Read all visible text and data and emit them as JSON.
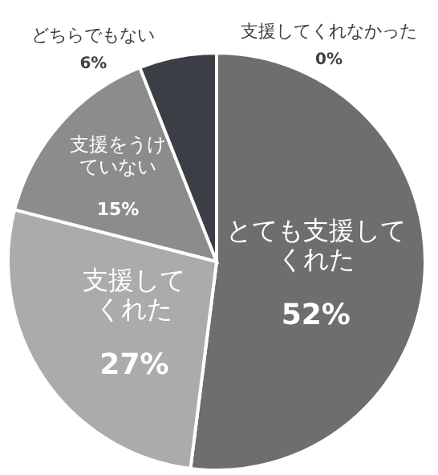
{
  "chart_data": {
    "type": "pie",
    "categories": [
      "とても支援してくれた",
      "支援してくれた",
      "支援をうけていない",
      "どちらでもない",
      "支援してくれなかった"
    ],
    "values": [
      52,
      27,
      15,
      6,
      0
    ],
    "value_labels": [
      "52%",
      "27%",
      "15%",
      "6%",
      "0%"
    ],
    "colors": [
      "#6e6e6e",
      "#ababab",
      "#8c8c8c",
      "#3b3e45",
      "#8a8a8a"
    ]
  }
}
